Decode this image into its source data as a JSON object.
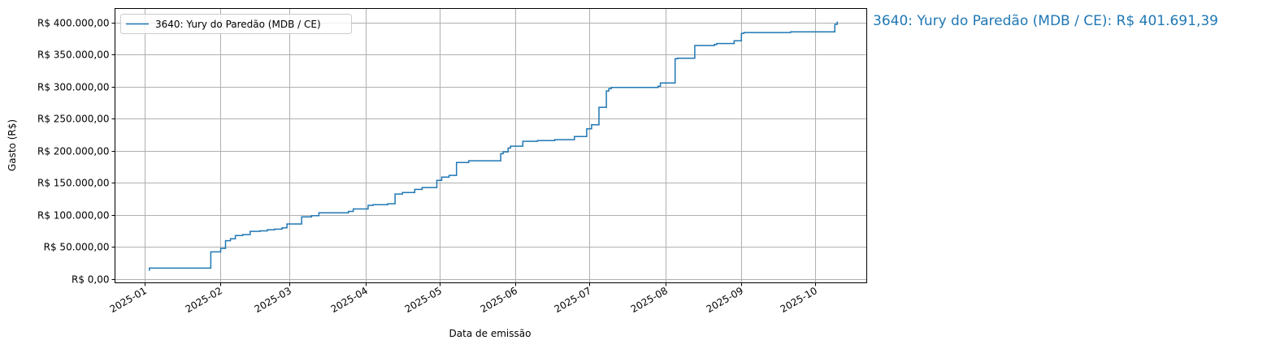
{
  "chart_data": {
    "type": "line",
    "drawstyle": "steps-post",
    "title": "",
    "xlabel": "Data de emissão",
    "ylabel": "Gasto (R$)",
    "xlim": [
      "2024-12-20",
      "2025-10-22"
    ],
    "ylim": [
      -5700,
      422000
    ],
    "grid": true,
    "legend_position": "top-left",
    "x_ticks": [
      "2025-01",
      "2025-02",
      "2025-03",
      "2025-04",
      "2025-05",
      "2025-06",
      "2025-07",
      "2025-08",
      "2025-09",
      "2025-10"
    ],
    "y_ticks": [
      {
        "value": 0,
        "label": "R$ 0,00"
      },
      {
        "value": 50000,
        "label": "R$ 50.000,00"
      },
      {
        "value": 100000,
        "label": "R$ 100.000,00"
      },
      {
        "value": 150000,
        "label": "R$ 150.000,00"
      },
      {
        "value": 200000,
        "label": "R$ 200.000,00"
      },
      {
        "value": 250000,
        "label": "R$ 250.000,00"
      },
      {
        "value": 300000,
        "label": "R$ 300.000,00"
      },
      {
        "value": 350000,
        "label": "R$ 350.000,00"
      },
      {
        "value": 400000,
        "label": "R$ 400.000,00"
      }
    ],
    "series": [
      {
        "name": "3640: Yury do Paredão (MDB / CE)",
        "color": "#1f77b4",
        "x": [
          "2025-01-03",
          "2025-01-03",
          "2025-01-28",
          "2025-02-01",
          "2025-02-03",
          "2025-02-05",
          "2025-02-07",
          "2025-02-10",
          "2025-02-13",
          "2025-02-17",
          "2025-02-20",
          "2025-02-23",
          "2025-02-26",
          "2025-02-28",
          "2025-03-06",
          "2025-03-10",
          "2025-03-13",
          "2025-03-25",
          "2025-03-27",
          "2025-04-02",
          "2025-04-04",
          "2025-04-10",
          "2025-04-13",
          "2025-04-16",
          "2025-04-21",
          "2025-04-24",
          "2025-04-30",
          "2025-05-02",
          "2025-05-05",
          "2025-05-08",
          "2025-05-13",
          "2025-05-26",
          "2025-05-27",
          "2025-05-29",
          "2025-05-30",
          "2025-06-04",
          "2025-06-10",
          "2025-06-17",
          "2025-06-25",
          "2025-06-30",
          "2025-07-02",
          "2025-07-05",
          "2025-07-08",
          "2025-07-09",
          "2025-07-10",
          "2025-07-29",
          "2025-07-30",
          "2025-08-05",
          "2025-08-06",
          "2025-08-13",
          "2025-08-21",
          "2025-08-22",
          "2025-08-29",
          "2025-09-01",
          "2025-09-02",
          "2025-09-21",
          "2025-10-09",
          "2025-10-10"
        ],
        "y": [
          13000,
          17200,
          42500,
          48000,
          60000,
          63000,
          68000,
          69500,
          74500,
          75300,
          77000,
          78000,
          80000,
          86000,
          97000,
          99000,
          103500,
          105700,
          109500,
          115000,
          116000,
          117500,
          132700,
          135000,
          140000,
          142800,
          154000,
          159000,
          161800,
          182000,
          184600,
          195600,
          198500,
          204500,
          207400,
          215000,
          216000,
          217500,
          222500,
          234500,
          240800,
          268000,
          293500,
          297000,
          299000,
          300700,
          306000,
          343700,
          344600,
          364300,
          366000,
          367400,
          371600,
          383300,
          384600,
          385500,
          397300,
          401691.39
        ]
      }
    ],
    "annotation": "3640: Yury do Paredão (MDB / CE): R$ 401.691,39",
    "annotation_color": "#1f77b4",
    "legend_entries": [
      "3640: Yury do Paredão (MDB / CE)"
    ]
  }
}
